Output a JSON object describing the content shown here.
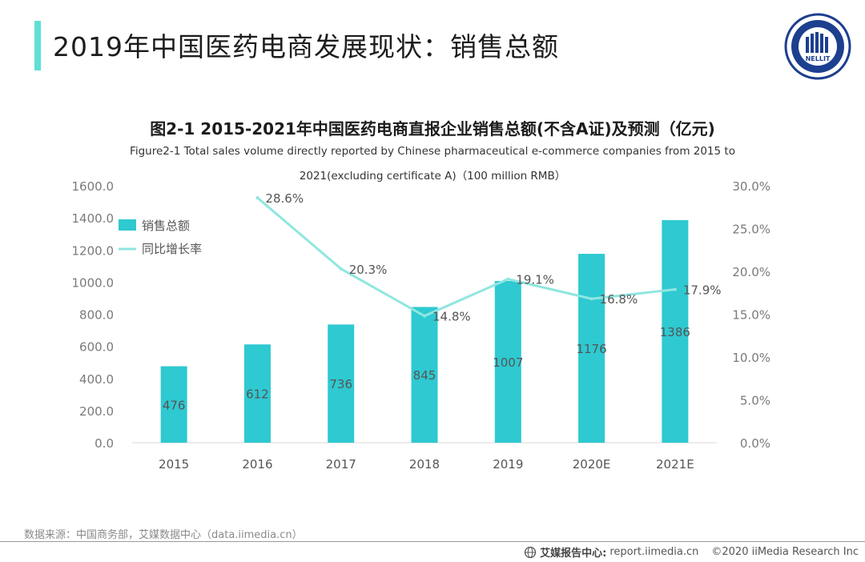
{
  "page": {
    "title": "2019年中国医药电商发展现状：销售总额"
  },
  "logo": {
    "name": "NELLIT"
  },
  "chart_data": {
    "type": "bar",
    "title": "图2-1 2015-2021年中国医药电商直报企业销售总额(不含A证)及预测（亿元)",
    "subtitle_line1": "Figure2-1 Total sales volume directly reported by Chinese pharmaceutical e-commerce companies from 2015 to",
    "subtitle_line2": "2021(excluding certificate A)（100 million RMB）",
    "categories": [
      "2015",
      "2016",
      "2017",
      "2018",
      "2019",
      "2020E",
      "2021E"
    ],
    "series": [
      {
        "name": "销售总额",
        "type": "bar",
        "axis": "left",
        "values": [
          476,
          612,
          736,
          845,
          1007,
          1176,
          1386
        ],
        "labels": [
          "476",
          "612",
          "736",
          "845",
          "1007",
          "1176",
          "1386"
        ],
        "color": "#2ec9d1"
      },
      {
        "name": "同比增长率",
        "type": "line",
        "axis": "right",
        "values": [
          null,
          28.6,
          20.3,
          14.8,
          19.1,
          16.8,
          17.9
        ],
        "labels": [
          "",
          "28.6%",
          "20.3%",
          "14.8%",
          "19.1%",
          "16.8%",
          "17.9%"
        ],
        "color": "#8fe6e0"
      }
    ],
    "y_left": {
      "range": [
        0,
        1600
      ],
      "ticks": [
        "0.0",
        "200.0",
        "400.0",
        "600.0",
        "800.0",
        "1000.0",
        "1200.0",
        "1400.0",
        "1600.0"
      ]
    },
    "y_right": {
      "range": [
        0,
        30
      ],
      "ticks": [
        "0.0%",
        "5.0%",
        "10.0%",
        "15.0%",
        "20.0%",
        "25.0%",
        "30.0%"
      ]
    },
    "legend_position": "top-left",
    "grid": false
  },
  "source": "数据来源：中国商务部，艾媒数据中心（data.iimedia.cn）",
  "footer": {
    "brand": "艾媒报告中心:",
    "url": "report.iimedia.cn",
    "copyright": "©2020  iiMedia Research  Inc"
  }
}
